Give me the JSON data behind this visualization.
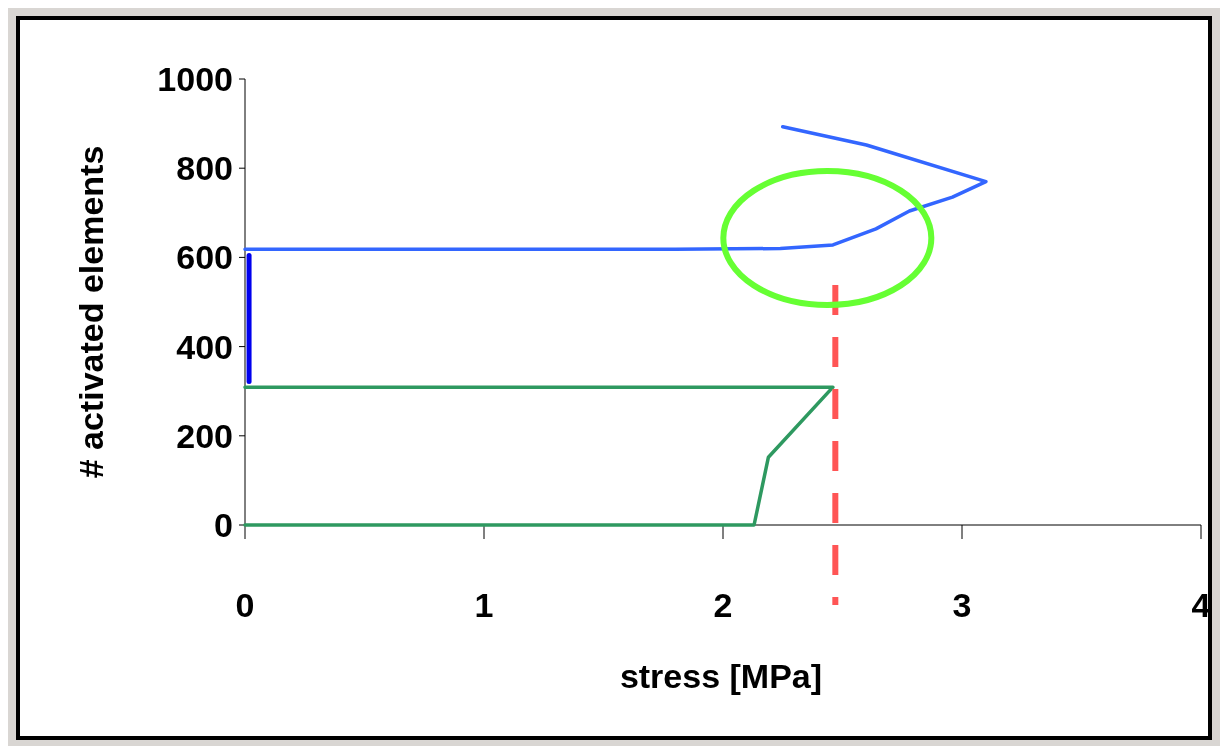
{
  "chart_data": {
    "type": "line",
    "xlabel": "stress [MPa]",
    "ylabel": "# activated elements",
    "xlim": [
      0,
      4
    ],
    "ylim": [
      0,
      1000
    ],
    "xticks": [
      0,
      1,
      2,
      3,
      4
    ],
    "yticks": [
      0,
      200,
      400,
      600,
      800,
      1000
    ],
    "grid": false,
    "marker": "none",
    "series": [
      {
        "color": "#3366ff",
        "x": [
          0,
          1.8,
          2.24,
          2.46,
          2.64,
          2.78,
          2.96,
          3.1,
          2.6,
          2.25
        ],
        "values": [
          618,
          618,
          620,
          628,
          664,
          704,
          735,
          770,
          852,
          893
        ]
      },
      {
        "color": "#0000ee",
        "x": [
          0.017,
          0.017
        ],
        "values": [
          604,
          322
        ]
      },
      {
        "color": "#2e9960",
        "x": [
          0,
          2.46,
          2.19,
          2.13,
          0
        ],
        "values": [
          309,
          309,
          152,
          0,
          0
        ]
      }
    ],
    "ref_lines": [
      {
        "axis": "x",
        "value": 2.47,
        "color": "#ff5555",
        "line_style": "dashed"
      }
    ]
  }
}
